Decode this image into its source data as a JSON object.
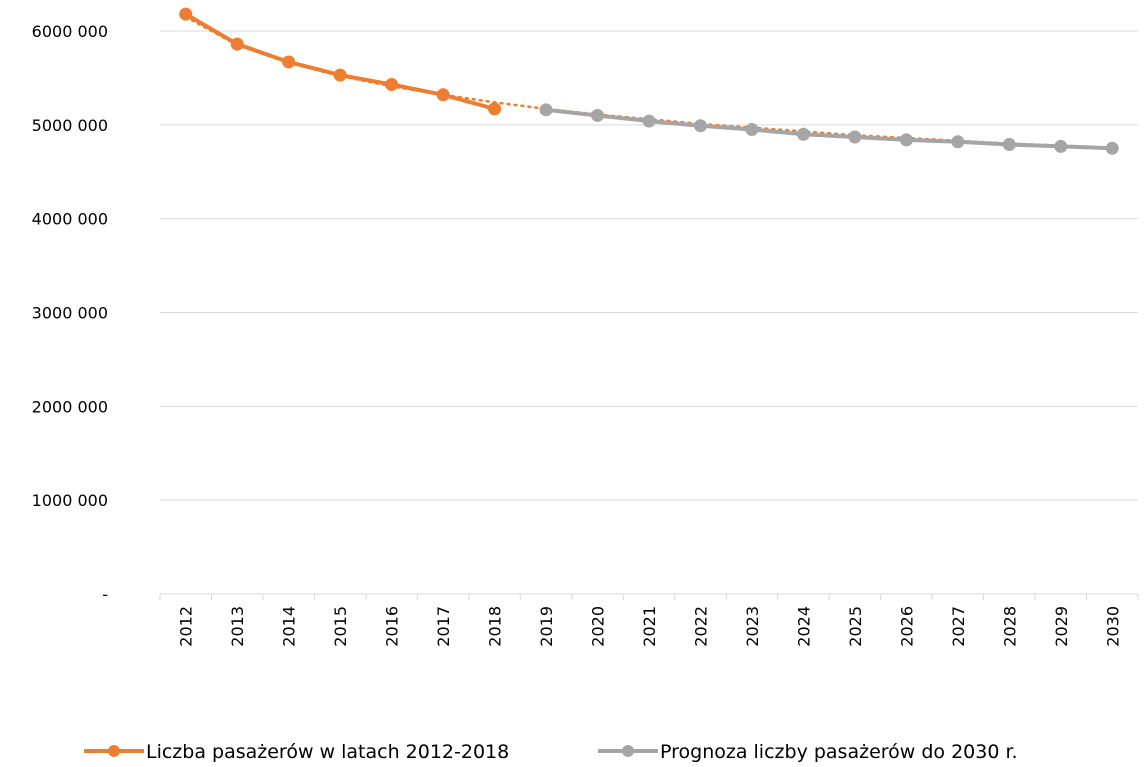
{
  "chart_data": {
    "type": "line",
    "title": "",
    "xlabel": "",
    "ylabel": "",
    "x": [
      "2012",
      "2013",
      "2014",
      "2015",
      "2016",
      "2017",
      "2018",
      "2019",
      "2020",
      "2021",
      "2022",
      "2023",
      "2024",
      "2025",
      "2026",
      "2027",
      "2028",
      "2029",
      "2030"
    ],
    "ylim": [
      0,
      6000000
    ],
    "y_ticks": [
      {
        "value": 0,
        "label": "-"
      },
      {
        "value": 1000000,
        "label": "1000 000"
      },
      {
        "value": 2000000,
        "label": "2000 000"
      },
      {
        "value": 3000000,
        "label": "3000 000"
      },
      {
        "value": 4000000,
        "label": "4000 000"
      },
      {
        "value": 5000000,
        "label": "5000 000"
      },
      {
        "value": 6000000,
        "label": "6000 000"
      }
    ],
    "grid": true,
    "legend_position": "bottom",
    "series": [
      {
        "name": "Liczba pasażerów w latach 2012-2018",
        "color": "#ED7D31",
        "x": [
          "2012",
          "2013",
          "2014",
          "2015",
          "2016",
          "2017",
          "2018"
        ],
        "values": [
          6180000,
          5860000,
          5670000,
          5530000,
          5430000,
          5320000,
          5170000
        ]
      },
      {
        "name": "Prognoza liczby pasażerów do 2030 r.",
        "color": "#A5A5A5",
        "x": [
          "2019",
          "2020",
          "2021",
          "2022",
          "2023",
          "2024",
          "2025",
          "2026",
          "2027",
          "2028",
          "2029",
          "2030"
        ],
        "values": [
          5160000,
          5100000,
          5040000,
          4990000,
          4950000,
          4900000,
          4870000,
          4840000,
          4820000,
          4790000,
          4770000,
          4750000
        ]
      }
    ],
    "trendline": {
      "color": "#ED7D31",
      "style": "dotted",
      "x": [
        "2012",
        "2013",
        "2014",
        "2015",
        "2016",
        "2017",
        "2018",
        "2019",
        "2020",
        "2021",
        "2022",
        "2023",
        "2024",
        "2025",
        "2026",
        "2027",
        "2028",
        "2029",
        "2030"
      ],
      "values": [
        6150000,
        5850000,
        5660000,
        5520000,
        5410000,
        5320000,
        5240000,
        5170000,
        5110000,
        5060000,
        5010000,
        4970000,
        4930000,
        4890000,
        4860000,
        4830000,
        4800000,
        4780000,
        4750000
      ]
    }
  }
}
